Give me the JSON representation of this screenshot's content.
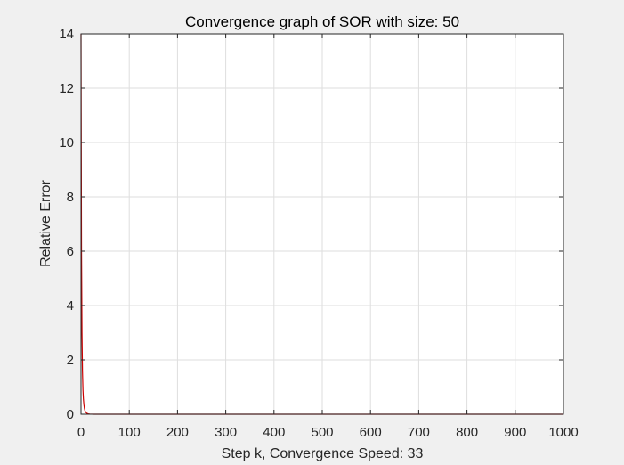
{
  "chart_data": {
    "type": "line",
    "title": "Convergence graph of SOR with size: 50",
    "xlabel": "Step k, Convergence Speed: 33",
    "ylabel": "Relative Error",
    "xlim": [
      0,
      1000
    ],
    "ylim": [
      0,
      14
    ],
    "xticks": [
      0,
      100,
      200,
      300,
      400,
      500,
      600,
      700,
      800,
      900,
      1000
    ],
    "yticks": [
      0,
      2,
      4,
      6,
      8,
      10,
      12,
      14
    ],
    "grid": true,
    "series": [
      {
        "name": "Relative Error",
        "color": "#cc0000",
        "x": [
          0,
          1,
          2,
          3,
          4,
          5,
          6,
          7,
          8,
          10,
          12,
          15,
          18,
          22,
          27,
          33,
          50,
          100,
          200,
          400,
          600,
          800,
          1000
        ],
        "y": [
          14,
          6.0,
          3.0,
          1.6,
          0.9,
          0.55,
          0.35,
          0.22,
          0.14,
          0.07,
          0.035,
          0.015,
          0.006,
          0.002,
          0.0005,
          0.0001,
          0,
          0,
          0,
          0,
          0,
          0,
          0
        ]
      }
    ]
  }
}
